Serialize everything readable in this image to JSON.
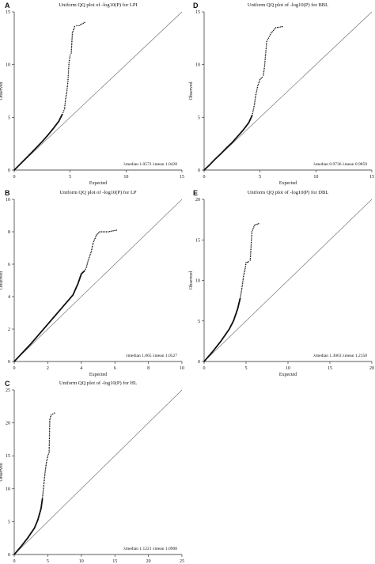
{
  "chart_data": [
    {
      "type": "scatter",
      "panel": "A",
      "title": "Uniform QQ plot of -log10(P) for LPI",
      "xlabel": "Expected",
      "ylabel": "Observed",
      "xlim": [
        0,
        15
      ],
      "ylim": [
        0,
        15
      ],
      "xticks": [
        "0",
        "5",
        "10",
        "15"
      ],
      "yticks": [
        "0",
        "5",
        "10",
        "15"
      ],
      "stats": "λmedian 1.0572    λmean 1.0428",
      "reference_line": "y = x",
      "points": [
        [
          0,
          0
        ],
        [
          0.5,
          0.53
        ],
        [
          1,
          1.06
        ],
        [
          1.5,
          1.6
        ],
        [
          2,
          2.15
        ],
        [
          2.5,
          2.7
        ],
        [
          3,
          3.3
        ],
        [
          3.5,
          3.95
        ],
        [
          4,
          4.65
        ],
        [
          4.3,
          5.3
        ],
        [
          4.5,
          5.8
        ],
        [
          4.6,
          6.8
        ],
        [
          4.7,
          7.4
        ],
        [
          4.8,
          8.4
        ],
        [
          4.85,
          9.3
        ],
        [
          4.9,
          10.2
        ],
        [
          5,
          10.9
        ],
        [
          5.1,
          11.1
        ],
        [
          5.2,
          13.0
        ],
        [
          5.4,
          13.6
        ],
        [
          5.6,
          13.7
        ],
        [
          5.8,
          13.7
        ],
        [
          6.3,
          14.0
        ]
      ]
    },
    {
      "type": "scatter",
      "panel": "B",
      "title": "Uniform QQ plot of -log10(P) for LP",
      "xlabel": "Expected",
      "ylabel": "Observed",
      "xlim": [
        0,
        10
      ],
      "ylim": [
        0,
        10
      ],
      "xticks": [
        "0",
        "2",
        "4",
        "6",
        "8",
        "10"
      ],
      "yticks": [
        "0",
        "2",
        "4",
        "6",
        "8",
        "10"
      ],
      "stats": "λmedian 1.065    λmean 1.0527",
      "reference_line": "y = x",
      "points": [
        [
          0,
          0
        ],
        [
          0.5,
          0.55
        ],
        [
          1,
          1.1
        ],
        [
          1.5,
          1.7
        ],
        [
          2,
          2.3
        ],
        [
          2.5,
          2.9
        ],
        [
          3,
          3.5
        ],
        [
          3.5,
          4.1
        ],
        [
          3.8,
          4.8
        ],
        [
          4,
          5.4
        ],
        [
          4.2,
          5.6
        ],
        [
          4.3,
          5.8
        ],
        [
          4.4,
          6.2
        ],
        [
          4.5,
          6.5
        ],
        [
          4.6,
          6.8
        ],
        [
          4.7,
          7.3
        ],
        [
          4.9,
          7.8
        ],
        [
          5.1,
          8.0
        ],
        [
          5.3,
          8.0
        ],
        [
          5.6,
          8.0
        ],
        [
          6.1,
          8.1
        ]
      ]
    },
    {
      "type": "scatter",
      "panel": "C",
      "title": "Uniform QQ plot of -log10(P) for HL",
      "xlabel": "Expected",
      "ylabel": "Observed",
      "xlim": [
        0,
        25
      ],
      "ylim": [
        0,
        25
      ],
      "xticks": [
        "0",
        "5",
        "10",
        "15",
        "20",
        "25"
      ],
      "yticks": [
        "0",
        "5",
        "10",
        "15",
        "20",
        "25"
      ],
      "stats": "λmedian 1.1221    λmean 1.0908",
      "reference_line": "y = x",
      "points": [
        [
          0,
          0
        ],
        [
          1,
          1.2
        ],
        [
          2,
          2.5
        ],
        [
          3,
          4
        ],
        [
          3.5,
          5.2
        ],
        [
          4,
          7
        ],
        [
          4.2,
          8.5
        ],
        [
          4.4,
          10.5
        ],
        [
          4.6,
          12.5
        ],
        [
          4.8,
          14
        ],
        [
          5,
          15
        ],
        [
          5.2,
          15.5
        ],
        [
          5.3,
          20.5
        ],
        [
          5.5,
          21.2
        ],
        [
          6,
          21.5
        ]
      ]
    },
    {
      "type": "scatter",
      "panel": "D",
      "title": "Uniform QQ plot of -log10(P) for BBL",
      "xlabel": "Expected",
      "ylabel": "Observed",
      "xlim": [
        0,
        15
      ],
      "ylim": [
        0,
        15
      ],
      "xticks": [
        "0",
        "5",
        "10",
        "15"
      ],
      "yticks": [
        "0",
        "5",
        "10",
        "15"
      ],
      "stats": "λmedian 0.9736    λmean 0.9859",
      "reference_line": "y = x",
      "points": [
        [
          0,
          0
        ],
        [
          0.5,
          0.5
        ],
        [
          1,
          1.05
        ],
        [
          1.5,
          1.55
        ],
        [
          2,
          2.1
        ],
        [
          2.5,
          2.6
        ],
        [
          3,
          3.2
        ],
        [
          3.5,
          3.8
        ],
        [
          4,
          4.5
        ],
        [
          4.3,
          5.2
        ],
        [
          4.5,
          6.2
        ],
        [
          4.6,
          7
        ],
        [
          4.8,
          8
        ],
        [
          5,
          8.6
        ],
        [
          5.2,
          8.8
        ],
        [
          5.3,
          9
        ],
        [
          5.4,
          9.8
        ],
        [
          5.5,
          11
        ],
        [
          5.6,
          12.2
        ],
        [
          6,
          13
        ],
        [
          6.4,
          13.5
        ],
        [
          7,
          13.6
        ]
      ]
    },
    {
      "type": "scatter",
      "panel": "E",
      "title": "Uniform QQ plot of -log10(P) for DBL",
      "xlabel": "Expected",
      "ylabel": "Observed",
      "xlim": [
        0,
        20
      ],
      "ylim": [
        0,
        20
      ],
      "xticks": [
        "0",
        "5",
        "10",
        "15",
        "20"
      ],
      "yticks": [
        "0",
        "5",
        "10",
        "15",
        "20"
      ],
      "stats": "λmedian 1.3063    λmean 1.2158",
      "reference_line": "y = x",
      "points": [
        [
          0,
          0
        ],
        [
          1,
          1.2
        ],
        [
          2,
          2.5
        ],
        [
          3,
          4
        ],
        [
          3.5,
          5
        ],
        [
          4,
          6.5
        ],
        [
          4.3,
          7.8
        ],
        [
          4.5,
          9
        ],
        [
          4.7,
          10.5
        ],
        [
          4.9,
          11.5
        ],
        [
          5,
          12.2
        ],
        [
          5.3,
          12.3
        ],
        [
          5.5,
          12.5
        ],
        [
          5.7,
          16
        ],
        [
          6,
          16.8
        ],
        [
          6.5,
          17
        ]
      ]
    }
  ]
}
